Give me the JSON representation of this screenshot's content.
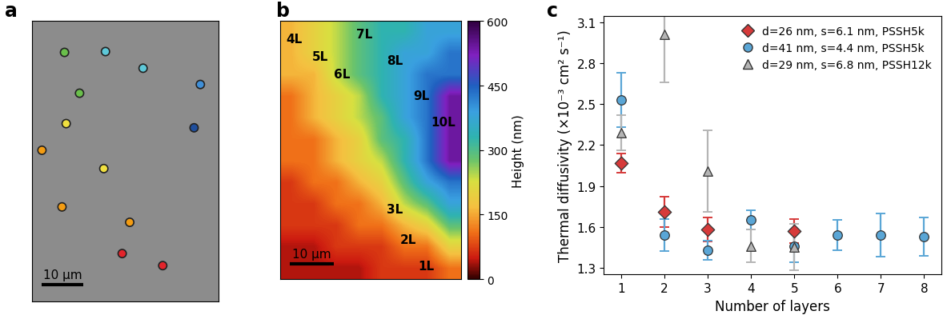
{
  "chart_data": [
    {
      "type": "image",
      "panel_label": "a",
      "xlim": [
        0,
        44.6
      ],
      "ylim": [
        67.3,
        0
      ],
      "tick_labels": false,
      "scale_bar": {
        "length": 10,
        "label": "10 µm"
      },
      "points": {
        "x": [
          7.7,
          17.5,
          26.5,
          40.2,
          11.3,
          8.1,
          38.7,
          2.3,
          17.1,
          7.1,
          23.3,
          21.5,
          31.2
        ],
        "y": [
          7.5,
          7.3,
          11.3,
          15.2,
          17.3,
          24.6,
          25.6,
          31.0,
          35.4,
          44.6,
          48.3,
          55.8,
          58.7
        ],
        "colors": [
          "#6abf4b",
          "#5ec8d8",
          "#5ec8d8",
          "#3f8fd8",
          "#6abf4b",
          "#f0e040",
          "#1f4e9c",
          "#f39c12",
          "#f0e040",
          "#f39c12",
          "#f39c12",
          "#e3242b",
          "#e3242b"
        ]
      }
    },
    {
      "type": "heatmap",
      "panel_label": "b",
      "xlim": [
        0,
        41
      ],
      "ylim": [
        59,
        0
      ],
      "tick_labels": false,
      "scale_bar": {
        "length": 10,
        "label": "10 µm"
      },
      "cells": [
        [
          160,
          200,
          240,
          290,
          330,
          330,
          380,
          380
        ],
        [
          160,
          200,
          240,
          290,
          330,
          380,
          380,
          430
        ],
        [
          160,
          160,
          240,
          290,
          330,
          380,
          430,
          430
        ],
        [
          110,
          160,
          200,
          240,
          330,
          380,
          430,
          540
        ],
        [
          110,
          160,
          200,
          240,
          290,
          380,
          430,
          540
        ],
        [
          110,
          110,
          160,
          200,
          290,
          330,
          430,
          540
        ],
        [
          110,
          110,
          160,
          200,
          240,
          330,
          430,
          540
        ],
        [
          70,
          110,
          110,
          160,
          200,
          290,
          380,
          430
        ],
        [
          70,
          70,
          110,
          110,
          160,
          240,
          290,
          380
        ],
        [
          70,
          70,
          70,
          110,
          110,
          160,
          200,
          290
        ],
        [
          40,
          40,
          70,
          70,
          70,
          110,
          110,
          200
        ],
        [
          40,
          40,
          40,
          40,
          70,
          70,
          70,
          110
        ]
      ],
      "annotations": [
        {
          "text": "4L",
          "x": 3,
          "y": 4
        },
        {
          "text": "5L",
          "x": 9,
          "y": 8
        },
        {
          "text": "7L",
          "x": 19,
          "y": 3
        },
        {
          "text": "6L",
          "x": 14,
          "y": 12
        },
        {
          "text": "8L",
          "x": 26,
          "y": 9
        },
        {
          "text": "9L",
          "x": 32,
          "y": 17
        },
        {
          "text": "10L",
          "x": 37,
          "y": 23
        },
        {
          "text": "3L",
          "x": 26,
          "y": 43
        },
        {
          "text": "2L",
          "x": 29,
          "y": 50
        },
        {
          "text": "1L",
          "x": 33,
          "y": 56
        }
      ],
      "colorbar": {
        "label": "Height (nm)",
        "range": [
          0,
          600
        ],
        "ticks": [
          0,
          150,
          300,
          450,
          600
        ]
      }
    },
    {
      "type": "scatter",
      "panel_label": "c",
      "x_label": "Number of layers",
      "y_label": "Thermal diffusivity (×10⁻³ cm² s⁻¹)",
      "xlim": [
        0.6,
        8.4
      ],
      "xticks": [
        1,
        2,
        3,
        4,
        5,
        6,
        7,
        8
      ],
      "ylim": [
        1.25,
        3.15
      ],
      "yticks": [
        1.3,
        1.6,
        1.9,
        2.2,
        2.5,
        2.8,
        3.1
      ],
      "legend": "upper right",
      "series": [
        {
          "name": "d=26 nm, s=6.1 nm, PSSH5k",
          "color": "#d63a3a",
          "marker": "diamond",
          "x": [
            1,
            2,
            3,
            5
          ],
          "values": [
            2.07,
            1.71,
            1.58,
            1.57
          ],
          "errors": [
            0.07,
            0.11,
            0.09,
            0.09
          ]
        },
        {
          "name": "d=41 nm, s=4.4 nm, PSSH5k",
          "color": "#5aa6d6",
          "marker": "circle",
          "x": [
            1,
            2,
            3,
            4,
            5,
            6,
            7,
            8
          ],
          "values": [
            2.53,
            1.54,
            1.43,
            1.65,
            1.46,
            1.54,
            1.54,
            1.53
          ],
          "errors": [
            0.2,
            0.12,
            0.07,
            0.07,
            0.12,
            0.11,
            0.16,
            0.14
          ]
        },
        {
          "name": "d=29 nm, s=6.8 nm, PSSH12k",
          "color": "#b5b5b5",
          "marker": "triangle",
          "x": [
            1,
            2,
            3,
            4,
            5
          ],
          "values": [
            2.29,
            3.01,
            2.01,
            1.46,
            1.45
          ],
          "errors": [
            0.13,
            0.35,
            0.3,
            0.12,
            0.17
          ]
        }
      ]
    }
  ]
}
